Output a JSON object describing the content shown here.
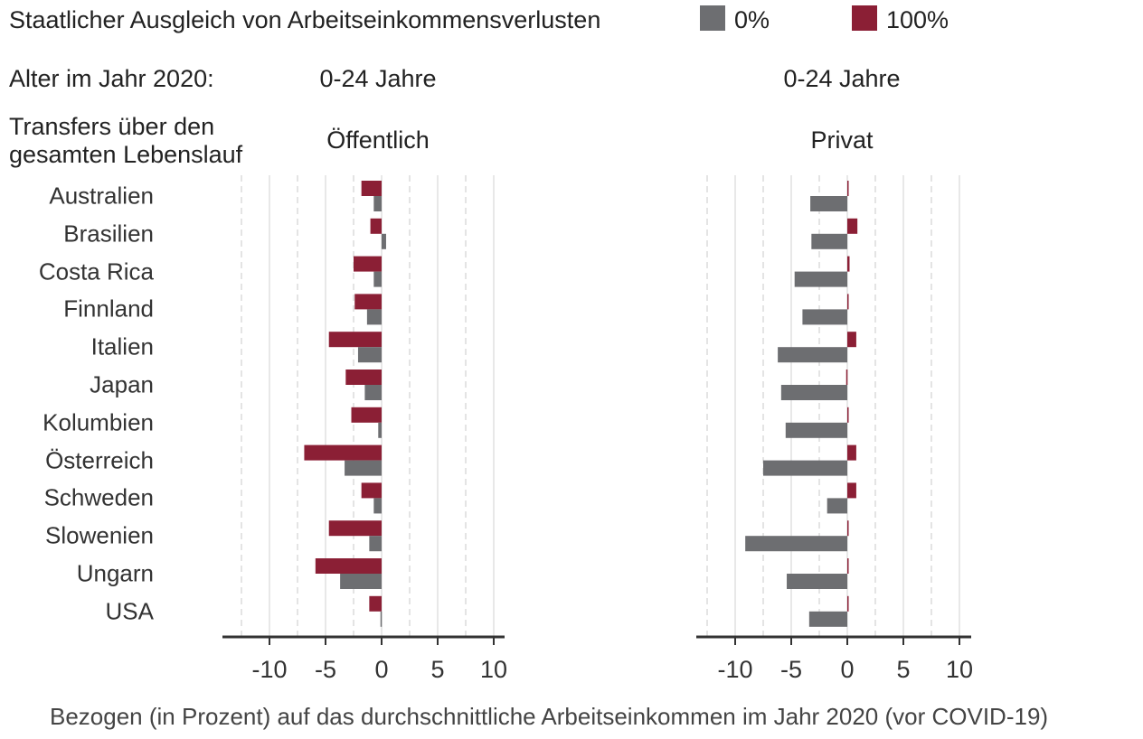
{
  "legend": {
    "title": "Staatlicher Ausgleich von Arbeitseinkommensverlusten",
    "items": [
      {
        "label": "0%",
        "color": "#6d6e71"
      },
      {
        "label": "100%",
        "color": "#8b1f35"
      }
    ]
  },
  "age_label": "Alter im Jahr 2020:",
  "transfers_label": "Transfers über den\ngesamten Lebenslauf",
  "footer": "Bezogen (in Prozent) auf das durchschnittliche Arbeitseinkommen im Jahr 2020 (vor COVID-19)",
  "chart_data": [
    {
      "type": "bar",
      "orientation": "horizontal",
      "age_group": "0-24 Jahre",
      "title": "Öffentlich",
      "categories": [
        "Australien",
        "Brasilien",
        "Costa Rica",
        "Finnland",
        "Italien",
        "Japan",
        "Kolumbien",
        "Österreich",
        "Schweden",
        "Slowenien",
        "Ungarn",
        "USA"
      ],
      "xlim": [
        -14,
        11
      ],
      "xticks": [
        -10,
        -5,
        0,
        5,
        10
      ],
      "xtick_labels": [
        "-10",
        "-5",
        "0",
        "5",
        "10"
      ],
      "series": [
        {
          "name": "100%",
          "color": "#8b1f35",
          "values": [
            -1.8,
            -1.0,
            -2.5,
            -2.4,
            -4.7,
            -3.2,
            -2.7,
            -6.9,
            -1.8,
            -4.7,
            -5.9,
            -1.1
          ]
        },
        {
          "name": "0%",
          "color": "#6d6e71",
          "values": [
            -0.7,
            0.4,
            -0.7,
            -1.3,
            -2.1,
            -1.5,
            -0.3,
            -3.3,
            -0.7,
            -1.1,
            -3.7,
            -0.1
          ]
        }
      ]
    },
    {
      "type": "bar",
      "orientation": "horizontal",
      "age_group": "0-24 Jahre",
      "title": "Privat",
      "categories": [
        "Australien",
        "Brasilien",
        "Costa Rica",
        "Finnland",
        "Italien",
        "Japan",
        "Kolumbien",
        "Österreich",
        "Schweden",
        "Slowenien",
        "Ungarn",
        "USA"
      ],
      "xlim": [
        -13.5,
        11
      ],
      "xticks": [
        -10,
        -5,
        0,
        5,
        10
      ],
      "xtick_labels": [
        "-10",
        "-5",
        "0",
        "5",
        "10"
      ],
      "series": [
        {
          "name": "100%",
          "color": "#8b1f35",
          "values": [
            0.0,
            0.9,
            0.2,
            0.0,
            0.8,
            -0.1,
            0.1,
            0.8,
            0.8,
            0.1,
            0.1,
            0.0
          ]
        },
        {
          "name": "0%",
          "color": "#6d6e71",
          "values": [
            -3.3,
            -3.2,
            -4.7,
            -4.0,
            -6.2,
            -5.9,
            -5.5,
            -7.5,
            -1.8,
            -9.1,
            -5.4,
            -3.4
          ]
        }
      ]
    }
  ]
}
